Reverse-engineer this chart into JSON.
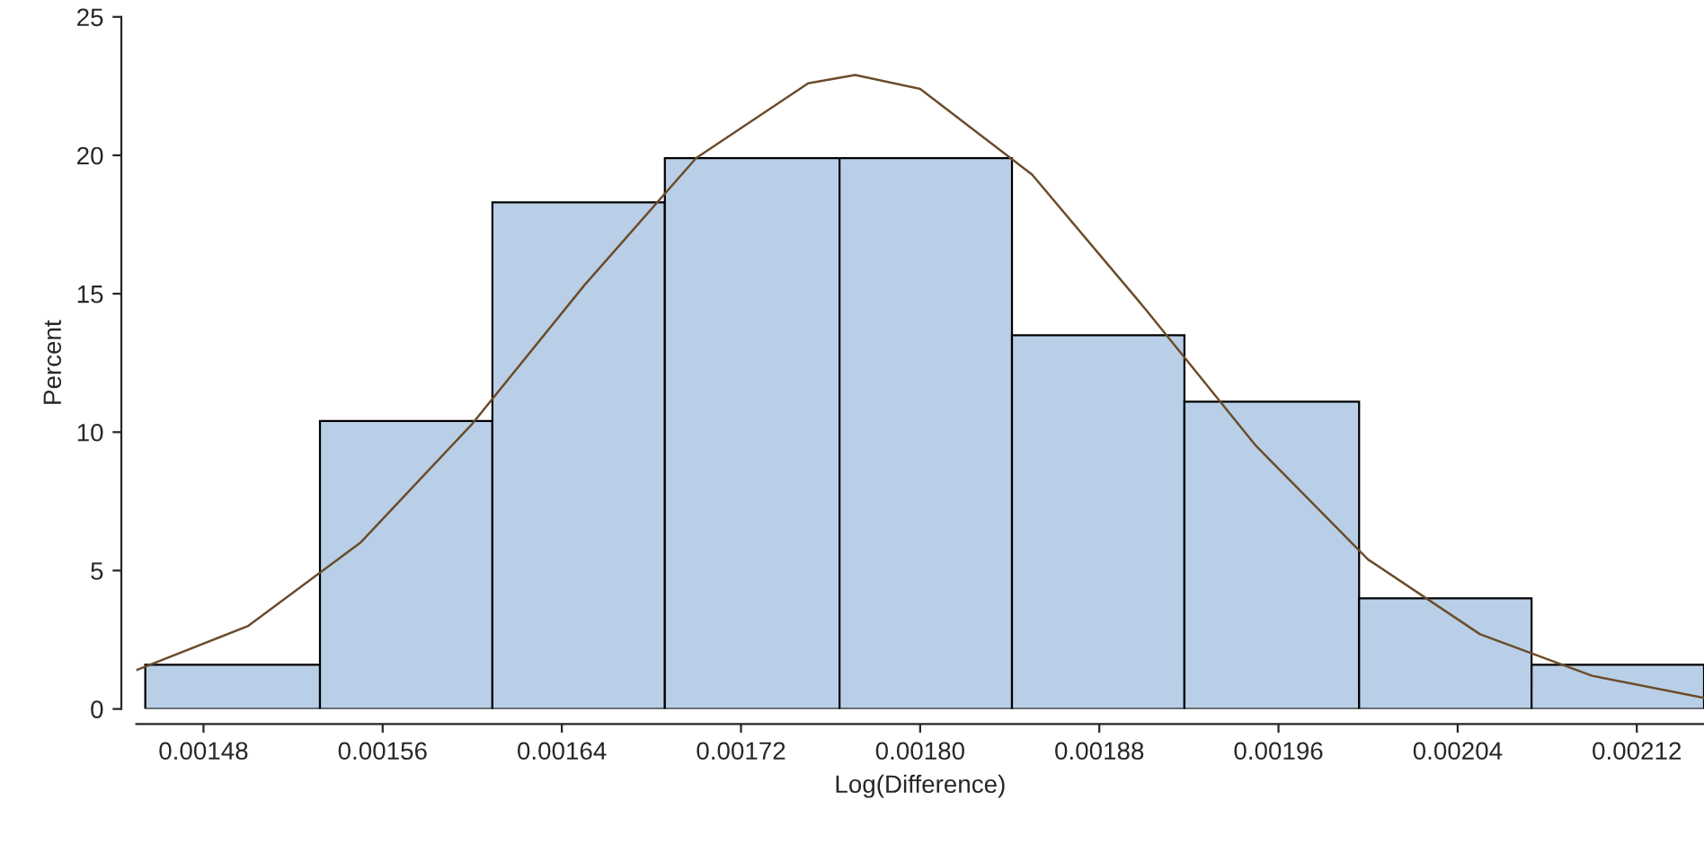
{
  "chart_data": {
    "type": "histogram",
    "xlabel": "Log(Difference)",
    "ylabel": "Percent",
    "bins": [
      0.001454,
      0.001532,
      0.001609,
      0.001686,
      0.001764,
      0.001841,
      0.001918,
      0.001996,
      0.002073,
      0.00215
    ],
    "values": [
      1.6,
      10.4,
      18.3,
      19.9,
      19.9,
      13.5,
      11.1,
      4.0,
      1.6
    ],
    "color": "#b9cfe7",
    "series": [
      {
        "type": "line",
        "color": "#6b4c2a",
        "x": [
          0.00145,
          0.0015,
          0.00155,
          0.0016,
          0.00165,
          0.0017,
          0.00175,
          0.001771,
          0.0018,
          0.00185,
          0.0019,
          0.00195,
          0.002,
          0.00205,
          0.0021,
          0.00215
        ],
        "values": [
          1.4,
          3.0,
          6.0,
          10.3,
          15.3,
          19.9,
          22.6,
          22.9,
          22.4,
          19.3,
          14.5,
          9.5,
          5.4,
          2.7,
          1.2,
          0.4
        ]
      }
    ],
    "xlim": [
      0.00145,
      0.00215
    ],
    "xticks": [
      0.00148,
      0.00156,
      0.00164,
      0.00172,
      {
        "value": 0.0018,
        "label": "0.00180"
      },
      0.00188,
      0.00196,
      0.00204,
      0.00212
    ],
    "ylim": [
      0,
      25
    ],
    "yticks": [
      0,
      5,
      10,
      15,
      20,
      25
    ],
    "grid": false,
    "legend": false
  }
}
